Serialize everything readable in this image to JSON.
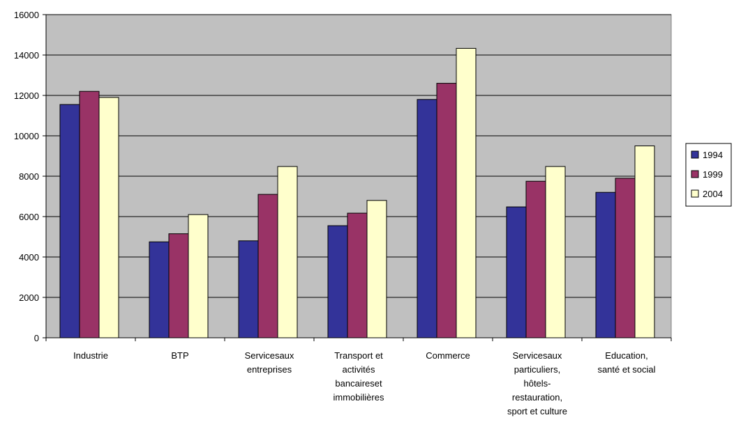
{
  "chart_data": {
    "type": "bar",
    "categories": [
      [
        "Industrie"
      ],
      [
        "BTP"
      ],
      [
        "Servicesaux",
        "entreprises"
      ],
      [
        "Transport et",
        "activités",
        "bancaireset",
        "immobilières"
      ],
      [
        "Commerce"
      ],
      [
        "Servicesaux",
        "particuliers,",
        "hôtels-",
        "restauration,",
        "sport et culture"
      ],
      [
        "Education,",
        "santé et social"
      ]
    ],
    "series": [
      {
        "name": "1994",
        "color": "#333399",
        "values": [
          11550,
          4750,
          4800,
          5550,
          11800,
          6480,
          7200
        ]
      },
      {
        "name": "1999",
        "color": "#993366",
        "values": [
          12200,
          5150,
          7100,
          6170,
          12600,
          7750,
          7900
        ]
      },
      {
        "name": "2004",
        "color": "#FFFFCC",
        "values": [
          11900,
          6100,
          8480,
          6800,
          14330,
          8480,
          9500
        ]
      }
    ],
    "ylim": [
      0,
      16000
    ],
    "yticks": [
      0,
      2000,
      4000,
      6000,
      8000,
      10000,
      12000,
      14000,
      16000
    ],
    "grid": true,
    "plot_background": "#C0C0C0",
    "legend_position": "right"
  }
}
